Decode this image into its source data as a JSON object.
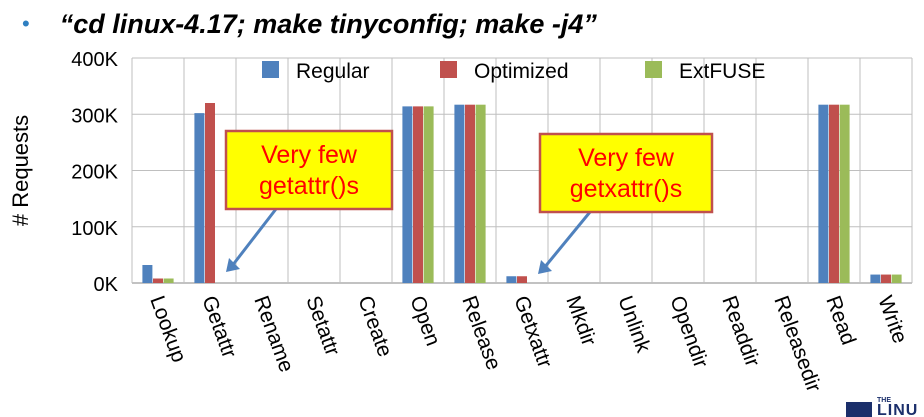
{
  "headline": {
    "bullet": "•",
    "text": "“cd linux-4.17; make tinyconfig; make -j4”"
  },
  "chart_data": {
    "type": "bar",
    "ylabel": "# Requests",
    "ylim": [
      0,
      400000
    ],
    "yticks": [
      0,
      100000,
      200000,
      300000,
      400000
    ],
    "ytick_labels": [
      "0K",
      "100K",
      "200K",
      "300K",
      "400K"
    ],
    "grid": "horizontal",
    "legend_position": "top",
    "categories": [
      "Lookup",
      "Getattr",
      "Rename",
      "Setattr",
      "Create",
      "Open",
      "Release",
      "Getxattr",
      "Mkdir",
      "Unlink",
      "Opendir",
      "Readdir",
      "Releasedir",
      "Read",
      "Write"
    ],
    "series": [
      {
        "name": "Regular",
        "color": "#4f81bd",
        "values": [
          32000,
          302000,
          0,
          0,
          0,
          314000,
          317000,
          12000,
          0,
          0,
          0,
          0,
          0,
          317000,
          15000
        ]
      },
      {
        "name": "Optimized",
        "color": "#c0504d",
        "values": [
          8000,
          320000,
          0,
          0,
          0,
          314000,
          317000,
          12000,
          0,
          0,
          0,
          0,
          0,
          317000,
          15000
        ]
      },
      {
        "name": "ExtFUSE",
        "color": "#9bbb59",
        "values": [
          8000,
          0,
          0,
          0,
          0,
          314000,
          317000,
          0,
          0,
          0,
          0,
          0,
          0,
          317000,
          15000
        ]
      }
    ],
    "annotations": [
      {
        "lines": [
          "Very few",
          "getattr()s"
        ],
        "target_category": "Getattr"
      },
      {
        "lines": [
          "Very few",
          "getxattr()s"
        ],
        "target_category": "Getxattr"
      }
    ]
  },
  "logo": {
    "small": "THE",
    "word": "LINU"
  }
}
